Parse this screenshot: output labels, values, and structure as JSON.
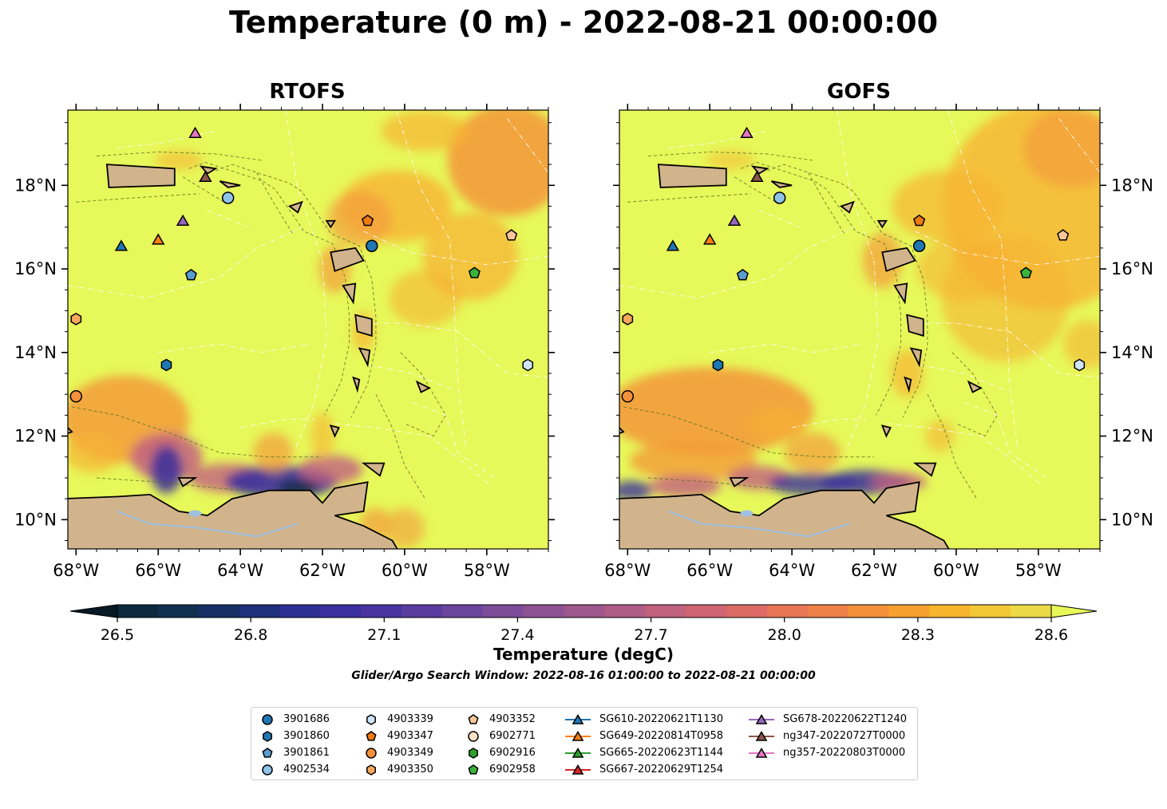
{
  "title": "Temperature (0 m) - 2022-08-21 00:00:00",
  "maps": [
    {
      "name": "RTOFS"
    },
    {
      "name": "GOFS"
    }
  ],
  "map_extent": {
    "lon": [
      -68.2,
      -56.5
    ],
    "lat": [
      9.3,
      19.8
    ]
  },
  "lon_ticks": [
    {
      "value": -68,
      "label": "68°W"
    },
    {
      "value": -66,
      "label": "66°W"
    },
    {
      "value": -64,
      "label": "64°W"
    },
    {
      "value": -62,
      "label": "62°W"
    },
    {
      "value": -60,
      "label": "60°W"
    },
    {
      "value": -58,
      "label": "58°W"
    }
  ],
  "lat_ticks": [
    {
      "value": 10,
      "label": "10°N"
    },
    {
      "value": 12,
      "label": "12°N"
    },
    {
      "value": 14,
      "label": "14°N"
    },
    {
      "value": 16,
      "label": "16°N"
    },
    {
      "value": 18,
      "label": "18°N"
    }
  ],
  "colorbar": {
    "label": "Temperature (degC)",
    "min": 26.5,
    "max": 28.6,
    "ticks": [
      "26.5",
      "26.8",
      "27.1",
      "27.4",
      "27.7",
      "28.0",
      "28.3",
      "28.6"
    ],
    "colors": [
      "#0b2a3e",
      "#10304f",
      "#162f65",
      "#1e2f7c",
      "#2c2f91",
      "#3b2f9e",
      "#4a34a0",
      "#5a3c9f",
      "#6b459c",
      "#7c4c98",
      "#8d5293",
      "#9e578d",
      "#af5c86",
      "#c0617d",
      "#cf6572",
      "#dc6b65",
      "#e77556",
      "#ee8147",
      "#f39039",
      "#f6a12f",
      "#f7b42d",
      "#f2c736",
      "#ecd948"
    ],
    "under_color": "#071a26",
    "over_color": "#e8f85a"
  },
  "search_window": "Glider/Argo Search Window: 2022-08-16 01:00:00 to 2022-08-21 00:00:00",
  "colors": {
    "sea_base": "#e7f85a",
    "land": "#d2b48c",
    "warm": "#f7b334",
    "warmer": "#f39b3a",
    "cool": "#c2607f",
    "cold": "#3a2f9c",
    "coldest": "#102a45"
  },
  "floats": [
    {
      "id": "3901686",
      "symbol": "circle",
      "color": "#1f77b4",
      "lon": -60.8,
      "lat": 16.55,
      "gofs_lon": -60.9,
      "gofs_lat": 16.55
    },
    {
      "id": "3901860",
      "symbol": "hexagon",
      "color": "#1f77b4",
      "lon": -65.8,
      "lat": 13.7
    },
    {
      "id": "3901861",
      "symbol": "pentagon",
      "color": "#5a9bd0",
      "lon": -65.2,
      "lat": 15.85
    },
    {
      "id": "4902534",
      "symbol": "circle",
      "color": "#8ec3e9",
      "lon": -64.3,
      "lat": 17.7
    },
    {
      "id": "4903339",
      "symbol": "hexagon",
      "color": "#cfe5f7",
      "lon": -57.0,
      "lat": 13.7
    },
    {
      "id": "4903347",
      "symbol": "pentagon",
      "color": "#ef7b11",
      "lon": -60.9,
      "lat": 17.15
    },
    {
      "id": "4903349",
      "symbol": "circle",
      "color": "#f5913a",
      "lon": -68.0,
      "lat": 12.95
    },
    {
      "id": "4903350",
      "symbol": "hexagon",
      "color": "#f8a75c",
      "lon": -68.0,
      "lat": 14.8
    },
    {
      "id": "4903352",
      "symbol": "pentagon",
      "color": "#fdc79a",
      "lon": -57.4,
      "lat": 16.8
    },
    {
      "id": "6902771",
      "symbol": "circle",
      "color": "#fde0c6"
    },
    {
      "id": "6902916",
      "symbol": "hexagon",
      "color": "#2ca02c"
    },
    {
      "id": "6902958",
      "symbol": "pentagon",
      "color": "#3bb33b",
      "lon": -58.3,
      "lat": 15.9
    }
  ],
  "gliders": [
    {
      "id": "SG610-20220621T1130",
      "color": "#1f77b4",
      "lon": -66.9,
      "lat": 16.55
    },
    {
      "id": "SG649-20220814T0958",
      "color": "#ff7f0e",
      "lon": -66.0,
      "lat": 16.7
    },
    {
      "id": "SG665-20220623T1144",
      "color": "#2ca02c"
    },
    {
      "id": "SG667-20220629T1254",
      "color": "#d62728"
    },
    {
      "id": "SG678-20220622T1240",
      "color": "#9467bd",
      "lon": -65.4,
      "lat": 17.15
    },
    {
      "id": "ng347-20220727T0000",
      "color": "#8c564b",
      "lon": -64.85,
      "lat": 18.2
    },
    {
      "id": "ng357-20220803T0000",
      "color": "#e377c2",
      "lon": -65.1,
      "lat": 19.25
    }
  ]
}
